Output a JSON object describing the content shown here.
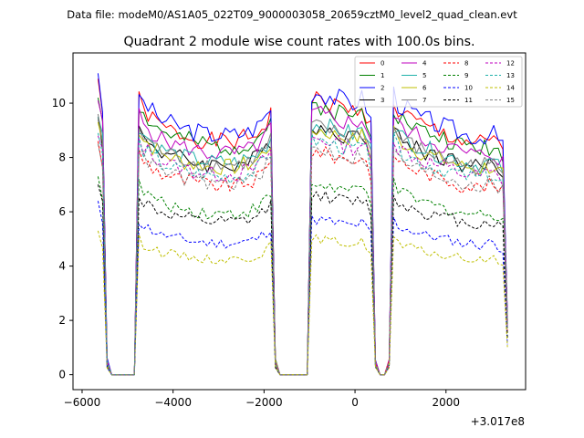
{
  "chart_data": {
    "type": "line",
    "suptitle": "Data file: modeM0/AS1A05_022T09_9000003058_20659cztM0_level2_quad_clean.evt",
    "title": "Quadrant 2 module wise count rates with 100.0s bins.",
    "xlabel": "",
    "ylabel": "",
    "offset_label": "+3.017e8",
    "xlim": [
      -6200,
      3750
    ],
    "ylim": [
      -0.55,
      11.85
    ],
    "x_ticks": [
      -6000,
      -4000,
      -2000,
      0,
      2000
    ],
    "x_tick_labels": [
      "−6000",
      "−4000",
      "−2000",
      "0",
      "2000"
    ],
    "y_ticks": [
      0,
      2,
      4,
      6,
      8,
      10
    ],
    "y_tick_labels": [
      "0",
      "2",
      "4",
      "6",
      "8",
      "10"
    ],
    "x_start": -5650,
    "x_step": 100,
    "profile": [
      1.0,
      0.95,
      0.05,
      0.0,
      0.0,
      0.0,
      0.0,
      0.0,
      0.0,
      1.0,
      0.96,
      0.95,
      0.93,
      0.92,
      0.9,
      0.9,
      0.89,
      0.88,
      0.88,
      0.87,
      0.87,
      0.86,
      0.86,
      0.86,
      0.85,
      0.85,
      0.85,
      0.85,
      0.85,
      0.85,
      0.85,
      0.85,
      0.86,
      0.86,
      0.87,
      0.88,
      0.9,
      0.92,
      0.95,
      0.05,
      0.0,
      0.0,
      0.0,
      0.0,
      0.0,
      0.0,
      0.0,
      1.0,
      1.0,
      1.0,
      0.99,
      0.99,
      0.98,
      0.98,
      0.97,
      0.97,
      0.96,
      0.97,
      0.98,
      0.95,
      0.9,
      0.05,
      0.0,
      0.0,
      0.05,
      1.0,
      0.96,
      0.95,
      0.94,
      0.93,
      0.92,
      0.91,
      0.9,
      0.9,
      0.89,
      0.88,
      0.88,
      0.87,
      0.87,
      0.86,
      0.85,
      0.85,
      0.85,
      0.84,
      0.84,
      0.85,
      0.85,
      0.85,
      0.83,
      0.82,
      0.2
    ],
    "series": [
      {
        "name": "0",
        "color": "#ff0000",
        "dash": false,
        "level": 10.1,
        "start": 10.9
      },
      {
        "name": "1",
        "color": "#008000",
        "dash": false,
        "level": 9.9,
        "start": 10.2
      },
      {
        "name": "2",
        "color": "#0000ff",
        "dash": false,
        "level": 10.4,
        "start": 11.1
      },
      {
        "name": "3",
        "color": "#000000",
        "dash": false,
        "level": 9.1,
        "start": 9.5
      },
      {
        "name": "4",
        "color": "#bf00bf",
        "dash": false,
        "level": 9.6,
        "start": 10.1
      },
      {
        "name": "5",
        "color": "#20b2aa",
        "dash": false,
        "level": 9.2,
        "start": 9.5
      },
      {
        "name": "6",
        "color": "#bfbf00",
        "dash": false,
        "level": 9.0,
        "start": 9.3
      },
      {
        "name": "7",
        "color": "#808080",
        "dash": false,
        "level": 9.1,
        "start": 9.6
      },
      {
        "name": "8",
        "color": "#ff0000",
        "dash": true,
        "level": 8.2,
        "start": 8.6
      },
      {
        "name": "9",
        "color": "#008000",
        "dash": true,
        "level": 7.0,
        "start": 7.3
      },
      {
        "name": "10",
        "color": "#0000ff",
        "dash": true,
        "level": 5.7,
        "start": 6.4
      },
      {
        "name": "11",
        "color": "#000000",
        "dash": true,
        "level": 6.6,
        "start": 7.0
      },
      {
        "name": "12",
        "color": "#bf00bf",
        "dash": true,
        "level": 8.7,
        "start": 8.8
      },
      {
        "name": "13",
        "color": "#20b2aa",
        "dash": true,
        "level": 8.6,
        "start": 8.9
      },
      {
        "name": "14",
        "color": "#bfbf00",
        "dash": true,
        "level": 5.0,
        "start": 5.3
      },
      {
        "name": "15",
        "color": "#808080",
        "dash": true,
        "level": 8.3,
        "start": 8.5
      }
    ],
    "legend": "top-right",
    "grid": false
  }
}
